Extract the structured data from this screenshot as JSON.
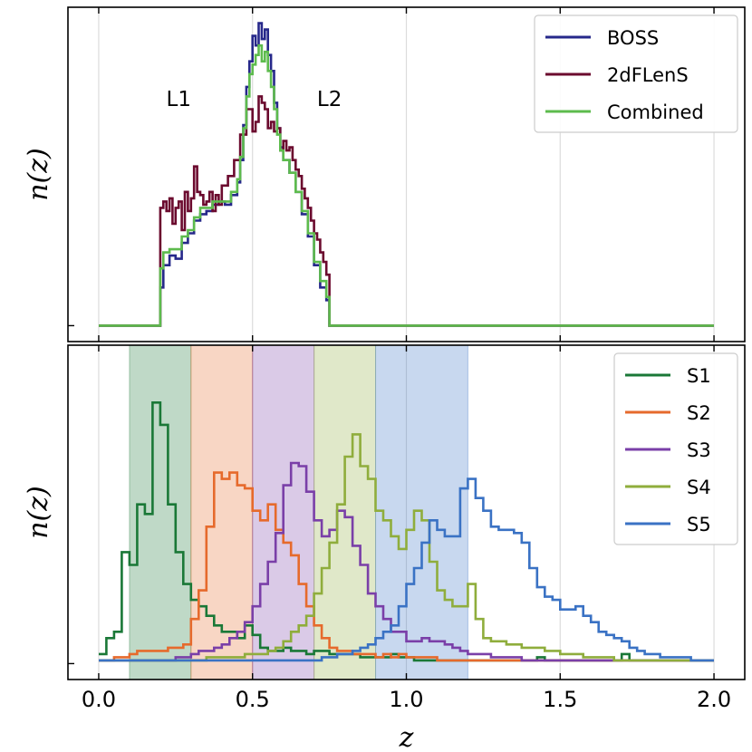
{
  "chart_data": [
    {
      "panel": "top",
      "type": "line",
      "step": true,
      "title": "",
      "xlabel": "",
      "ylabel": "n(z)",
      "xlim": [
        -0.1,
        2.1
      ],
      "ylim": [
        -0.05,
        1.0
      ],
      "grid": true,
      "legend_position": "top-right",
      "annotations": [
        {
          "text": "L1",
          "x": 0.26,
          "y": 0.69
        },
        {
          "text": "L2",
          "x": 0.75,
          "y": 0.69
        }
      ],
      "series": [
        {
          "name": "BOSS",
          "color": "#26288a",
          "x": [
            0.0,
            0.2,
            0.21,
            0.23,
            0.25,
            0.27,
            0.29,
            0.31,
            0.33,
            0.35,
            0.37,
            0.39,
            0.41,
            0.43,
            0.45,
            0.46,
            0.47,
            0.48,
            0.49,
            0.5,
            0.51,
            0.52,
            0.53,
            0.54,
            0.55,
            0.56,
            0.57,
            0.58,
            0.59,
            0.6,
            0.62,
            0.64,
            0.66,
            0.68,
            0.7,
            0.72,
            0.74,
            0.75,
            2.0
          ],
          "y": [
            0,
            0.12,
            0.19,
            0.22,
            0.21,
            0.26,
            0.29,
            0.33,
            0.35,
            0.36,
            0.38,
            0.39,
            0.38,
            0.41,
            0.45,
            0.52,
            0.63,
            0.75,
            0.83,
            0.91,
            0.88,
            0.95,
            0.9,
            0.93,
            0.85,
            0.8,
            0.7,
            0.62,
            0.56,
            0.52,
            0.48,
            0.42,
            0.35,
            0.28,
            0.19,
            0.12,
            0.08,
            0,
            0
          ]
        },
        {
          "name": "2dFLenS",
          "color": "#6b0a2e",
          "x": [
            0.0,
            0.2,
            0.21,
            0.22,
            0.23,
            0.24,
            0.25,
            0.26,
            0.27,
            0.28,
            0.29,
            0.3,
            0.31,
            0.32,
            0.33,
            0.34,
            0.35,
            0.36,
            0.37,
            0.38,
            0.39,
            0.4,
            0.42,
            0.44,
            0.46,
            0.48,
            0.5,
            0.51,
            0.52,
            0.53,
            0.54,
            0.55,
            0.56,
            0.57,
            0.58,
            0.59,
            0.6,
            0.61,
            0.62,
            0.63,
            0.64,
            0.65,
            0.66,
            0.67,
            0.68,
            0.69,
            0.7,
            0.71,
            0.72,
            0.73,
            0.74,
            0.75,
            2.0
          ],
          "y": [
            0,
            0.37,
            0.39,
            0.36,
            0.4,
            0.32,
            0.37,
            0.39,
            0.3,
            0.42,
            0.36,
            0.4,
            0.5,
            0.42,
            0.41,
            0.38,
            0.39,
            0.42,
            0.36,
            0.41,
            0.38,
            0.44,
            0.47,
            0.52,
            0.6,
            0.68,
            0.61,
            0.64,
            0.72,
            0.7,
            0.68,
            0.62,
            0.64,
            0.61,
            0.62,
            0.55,
            0.58,
            0.55,
            0.56,
            0.52,
            0.49,
            0.47,
            0.43,
            0.4,
            0.37,
            0.33,
            0.29,
            0.27,
            0.23,
            0.2,
            0.16,
            0,
            0
          ]
        },
        {
          "name": "Combined",
          "color": "#5dbb4d",
          "x": [
            0.0,
            0.2,
            0.21,
            0.23,
            0.25,
            0.27,
            0.29,
            0.31,
            0.33,
            0.35,
            0.37,
            0.39,
            0.41,
            0.43,
            0.45,
            0.46,
            0.47,
            0.48,
            0.49,
            0.5,
            0.51,
            0.52,
            0.53,
            0.54,
            0.55,
            0.56,
            0.57,
            0.58,
            0.59,
            0.6,
            0.62,
            0.64,
            0.66,
            0.68,
            0.7,
            0.72,
            0.74,
            0.75,
            2.0
          ],
          "y": [
            0,
            0.18,
            0.23,
            0.24,
            0.24,
            0.28,
            0.3,
            0.34,
            0.37,
            0.37,
            0.39,
            0.39,
            0.39,
            0.42,
            0.46,
            0.53,
            0.62,
            0.72,
            0.79,
            0.82,
            0.85,
            0.88,
            0.83,
            0.86,
            0.8,
            0.75,
            0.68,
            0.6,
            0.55,
            0.52,
            0.48,
            0.42,
            0.36,
            0.29,
            0.2,
            0.14,
            0.09,
            0,
            0
          ]
        }
      ]
    },
    {
      "panel": "bottom",
      "type": "line",
      "step": true,
      "title": "",
      "xlabel": "z",
      "ylabel": "n(z)",
      "xlim": [
        -0.1,
        2.1
      ],
      "ylim": [
        -0.05,
        1.0
      ],
      "xticks": [
        "0.0",
        "0.5",
        "1.0",
        "1.5",
        "2.0"
      ],
      "xtick_values": [
        0.0,
        0.5,
        1.0,
        1.5,
        2.0
      ],
      "grid": true,
      "legend_position": "top-right",
      "bands": [
        {
          "from": 0.1,
          "to": 0.3,
          "color": "#1a7837"
        },
        {
          "from": 0.3,
          "to": 0.5,
          "color": "#e66a2c"
        },
        {
          "from": 0.5,
          "to": 0.7,
          "color": "#7a3fa8"
        },
        {
          "from": 0.7,
          "to": 0.9,
          "color": "#8fad3c"
        },
        {
          "from": 0.9,
          "to": 1.2,
          "color": "#3a72c4"
        }
      ],
      "series": [
        {
          "name": "S1",
          "color": "#1a7837",
          "values": [
            0.03,
            0.08,
            0.1,
            0.35,
            0.31,
            0.5,
            0.47,
            0.82,
            0.75,
            0.5,
            0.35,
            0.25,
            0.2,
            0.18,
            0.15,
            0.12,
            0.1,
            0.1,
            0.08,
            0.12,
            0.09,
            0.05,
            0.04,
            0.04,
            0.05,
            0.04,
            0.04,
            0.03,
            0.04,
            0.04,
            0.03,
            0.03,
            0.03,
            0.03,
            0.02,
            0.02,
            0.02,
            0.02,
            0.03,
            0.02,
            0.02,
            0.01,
            0.01,
            0.01,
            0.01,
            0.01,
            0.01,
            0.01,
            0.01,
            0.01,
            0.01,
            0.01,
            0.01,
            0.01,
            0.01,
            0.01,
            0.01,
            0.02,
            0.01,
            0.01,
            0.01,
            0.01,
            0.01,
            0.01,
            0.01,
            0.01,
            0.01,
            0.01,
            0.03,
            0.01,
            0.01,
            0.01,
            0.01,
            0.01,
            0.01,
            0.01,
            0.01,
            0.01,
            0.01,
            0.01
          ]
        },
        {
          "name": "S2",
          "color": "#e66a2c",
          "values": [
            0.01,
            0.01,
            0.02,
            0.02,
            0.03,
            0.04,
            0.04,
            0.04,
            0.04,
            0.05,
            0.05,
            0.06,
            0.14,
            0.23,
            0.43,
            0.6,
            0.58,
            0.6,
            0.56,
            0.55,
            0.48,
            0.45,
            0.5,
            0.42,
            0.38,
            0.34,
            0.25,
            0.18,
            0.12,
            0.08,
            0.05,
            0.04,
            0.04,
            0.03,
            0.03,
            0.03,
            0.02,
            0.03,
            0.02,
            0.03,
            0.02,
            0.02,
            0.02,
            0.02,
            0.01,
            0.01,
            0.01,
            0.01,
            0.01,
            0.01,
            0.01,
            0.01,
            0.01,
            0.01,
            0.01,
            0.01,
            0.01,
            0.01,
            0.01,
            0.01,
            0.01,
            0.01,
            0.01,
            0.01,
            0.01,
            0.01,
            0.01,
            0.01,
            0.01,
            0.01,
            0.01,
            0.01,
            0.01,
            0.01,
            0.01,
            0.01,
            0.01,
            0.01,
            0.01,
            0.01
          ]
        },
        {
          "name": "S3",
          "color": "#7a3fa8",
          "values": [
            0.01,
            0.01,
            0.01,
            0.01,
            0.01,
            0.01,
            0.01,
            0.01,
            0.01,
            0.01,
            0.02,
            0.02,
            0.03,
            0.04,
            0.04,
            0.05,
            0.06,
            0.08,
            0.1,
            0.13,
            0.18,
            0.25,
            0.32,
            0.41,
            0.56,
            0.63,
            0.62,
            0.54,
            0.45,
            0.4,
            0.42,
            0.48,
            0.46,
            0.37,
            0.31,
            0.22,
            0.18,
            0.14,
            0.1,
            0.1,
            0.07,
            0.07,
            0.08,
            0.07,
            0.07,
            0.06,
            0.05,
            0.04,
            0.03,
            0.03,
            0.03,
            0.02,
            0.02,
            0.02,
            0.02,
            0.01,
            0.01,
            0.01,
            0.01,
            0.01,
            0.01,
            0.01,
            0.01,
            0.01,
            0.01,
            0.01,
            0.01,
            0.01,
            0.01,
            0.01,
            0.01,
            0.01,
            0.01,
            0.01,
            0.01,
            0.01,
            0.01,
            0.01,
            0.01,
            0.01
          ]
        },
        {
          "name": "S4",
          "color": "#8fad3c",
          "values": [
            0.01,
            0.01,
            0.01,
            0.01,
            0.01,
            0.01,
            0.01,
            0.01,
            0.01,
            0.01,
            0.01,
            0.01,
            0.01,
            0.01,
            0.02,
            0.02,
            0.02,
            0.02,
            0.02,
            0.03,
            0.03,
            0.03,
            0.04,
            0.05,
            0.07,
            0.1,
            0.12,
            0.15,
            0.22,
            0.3,
            0.38,
            0.5,
            0.65,
            0.72,
            0.62,
            0.58,
            0.48,
            0.45,
            0.4,
            0.36,
            0.42,
            0.48,
            0.45,
            0.32,
            0.23,
            0.2,
            0.18,
            0.18,
            0.25,
            0.14,
            0.08,
            0.07,
            0.07,
            0.06,
            0.06,
            0.05,
            0.05,
            0.05,
            0.04,
            0.04,
            0.03,
            0.03,
            0.03,
            0.02,
            0.02,
            0.02,
            0.02,
            0.01,
            0.01,
            0.01,
            0.01,
            0.01,
            0.01,
            0.01,
            0.01,
            0.01,
            0.01,
            0.01,
            0.01,
            0.01
          ]
        },
        {
          "name": "S5",
          "color": "#3a72c4",
          "values": [
            0.01,
            0.01,
            0.01,
            0.01,
            0.01,
            0.01,
            0.01,
            0.01,
            0.01,
            0.01,
            0.01,
            0.01,
            0.01,
            0.01,
            0.01,
            0.01,
            0.01,
            0.01,
            0.01,
            0.01,
            0.01,
            0.01,
            0.01,
            0.01,
            0.01,
            0.01,
            0.01,
            0.01,
            0.01,
            0.02,
            0.02,
            0.03,
            0.03,
            0.04,
            0.05,
            0.06,
            0.08,
            0.1,
            0.12,
            0.18,
            0.25,
            0.3,
            0.38,
            0.45,
            0.42,
            0.4,
            0.4,
            0.55,
            0.58,
            0.52,
            0.48,
            0.43,
            0.42,
            0.42,
            0.41,
            0.38,
            0.3,
            0.24,
            0.21,
            0.2,
            0.17,
            0.17,
            0.18,
            0.15,
            0.13,
            0.1,
            0.09,
            0.08,
            0.07,
            0.05,
            0.04,
            0.03,
            0.03,
            0.02,
            0.02,
            0.02,
            0.02,
            0.01,
            0.01,
            0.01
          ]
        }
      ]
    }
  ]
}
